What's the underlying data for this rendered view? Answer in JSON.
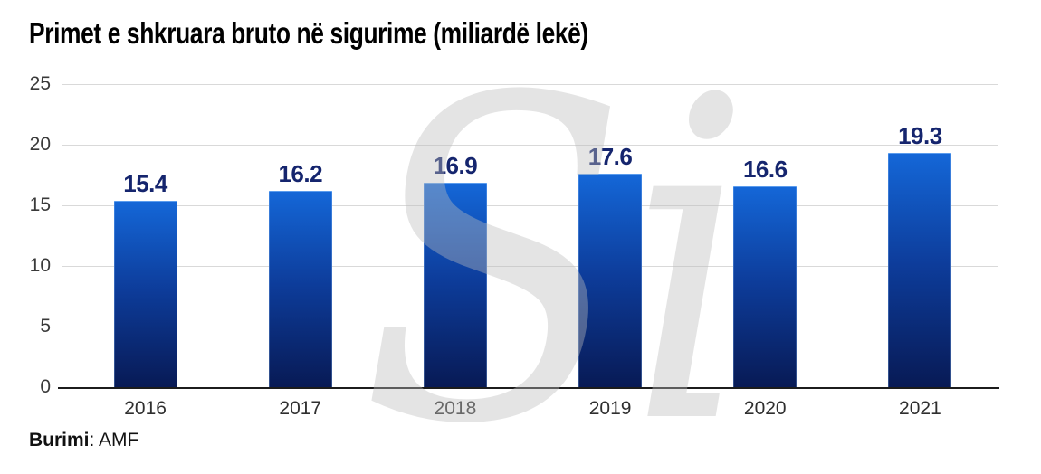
{
  "title": "Primet e shkruara bruto në sigurime (miliardë lekë)",
  "watermark_text": "Si",
  "source": {
    "label": "Burimi",
    "separator": ": ",
    "value": "AMF"
  },
  "chart_data": {
    "type": "bar",
    "title": "Primet e shkruara bruto në sigurime (miliardë lekë)",
    "categories": [
      "2016",
      "2017",
      "2018",
      "2019",
      "2020",
      "2021"
    ],
    "values": [
      15.4,
      16.2,
      16.9,
      17.6,
      16.6,
      19.3
    ],
    "value_labels": [
      "15.4",
      "16.2",
      "16.9",
      "17.6",
      "16.6",
      "19.3"
    ],
    "xlabel": "",
    "ylabel": "",
    "ylim": [
      0,
      25
    ],
    "yticks": [
      0,
      5,
      10,
      15,
      20,
      25
    ],
    "grid": true,
    "legend": "none",
    "colors": {
      "bar_gradient_top": "#1467d8",
      "bar_gradient_bottom": "#081a55",
      "value_label": "#15256e",
      "gridline": "#d9d9d9",
      "axis_line": "#1c1c1c",
      "tick_text": "#3a3a3a",
      "watermark": "#bdbdbd",
      "title_text": "#000000"
    }
  }
}
